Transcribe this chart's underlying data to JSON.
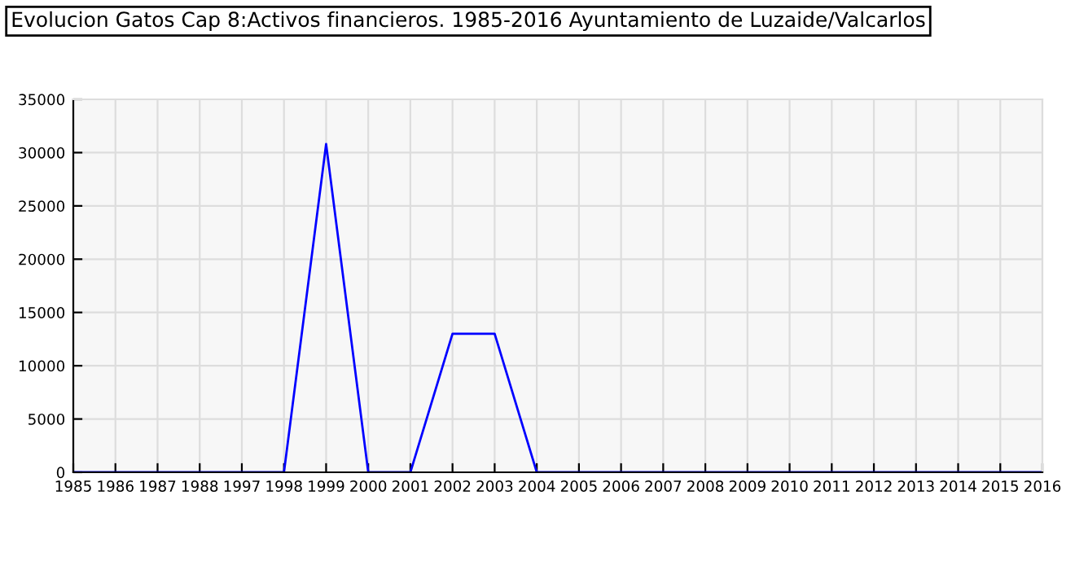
{
  "chart_data": {
    "type": "line",
    "title": "Evolucion Gatos Cap 8:Activos financieros. 1985-2016 Ayuntamiento de Luzaide/Valcarlos",
    "categories": [
      "1985",
      "1986",
      "1987",
      "1988",
      "1997",
      "1998",
      "1999",
      "2000",
      "2001",
      "2002",
      "2003",
      "2004",
      "2005",
      "2006",
      "2007",
      "2008",
      "2009",
      "2010",
      "2011",
      "2012",
      "2013",
      "2014",
      "2015",
      "2016"
    ],
    "series": [
      {
        "color": "#0000ff",
        "values": [
          0,
          0,
          0,
          0,
          0,
          0,
          30800,
          0,
          0,
          13000,
          13000,
          0,
          0,
          0,
          0,
          0,
          0,
          0,
          0,
          0,
          0,
          0,
          0,
          0
        ]
      }
    ],
    "ylim": [
      0,
      35000
    ],
    "yticks": [
      0,
      5000,
      10000,
      15000,
      20000,
      25000,
      30000,
      35000
    ],
    "grid": true,
    "marker": "none",
    "line_style": "solid"
  }
}
